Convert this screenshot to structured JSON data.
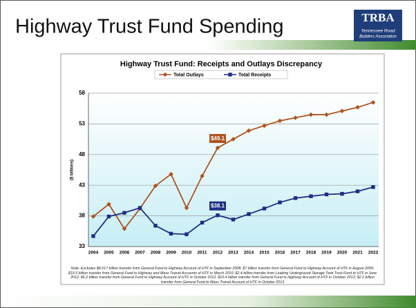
{
  "slide_title": "Highway Trust Fund Spending",
  "logo": {
    "text": "TRBA",
    "subtitle": [
      "Tennessee Road",
      "Builders Association"
    ]
  },
  "chart_data": {
    "type": "line",
    "title": "Highway Trust Fund: Receipts and Outlays Discrepancy",
    "ylabel": "($ billions)",
    "categories": [
      "2004",
      "2005",
      "2006",
      "2007",
      "2008",
      "2009",
      "2010",
      "2011",
      "2012",
      "2013",
      "2014",
      "2015",
      "2016",
      "2017",
      "2018",
      "2019",
      "2020",
      "2021",
      "2022"
    ],
    "series": [
      {
        "name": "Total Outlays",
        "color": "#b0531e",
        "marker": "diamond",
        "values": [
          37.9,
          39.9,
          35.9,
          39.2,
          42.9,
          44.8,
          39.3,
          44.5,
          49.1,
          50.5,
          51.9,
          52.7,
          53.5,
          54.0,
          54.5,
          54.5,
          55.1,
          55.7,
          56.5
        ],
        "value_labels": [
          null,
          null,
          null,
          null,
          null,
          null,
          null,
          null,
          "$49.1",
          null,
          null,
          null,
          null,
          null,
          null,
          null,
          null,
          null,
          null
        ]
      },
      {
        "name": "Total Receipts",
        "color": "#1f2d86",
        "marker": "square",
        "values": [
          34.7,
          37.9,
          38.5,
          39.3,
          36.4,
          35.1,
          35.0,
          36.9,
          38.1,
          37.4,
          38.3,
          39.2,
          40.2,
          40.9,
          41.2,
          41.5,
          41.6,
          42.0,
          42.7
        ],
        "value_labels": [
          null,
          null,
          null,
          null,
          null,
          null,
          null,
          null,
          "$38.1",
          null,
          null,
          null,
          null,
          null,
          null,
          null,
          null,
          null,
          null
        ]
      }
    ],
    "ylim": [
      33,
      58
    ],
    "yticks": [
      33,
      38,
      43,
      48,
      53,
      58
    ],
    "grid": true,
    "legend": "top",
    "note": "Note: Excludes $8.017 billion transfer from General Fund to Highway Account of HTF in September 2008; $7 billion transfer from General Fund to Highway Account of HTF in August 2009; $19.5 billion transfer from General Fund to Highway and Mass Transit Accounts of HTF in March 2010; $2.4 billion transfer from Leaking Underground Storage Tank Trust Fund to HTF in June 2012; $6.2 billion transfer from General Fund to Highway Account of HTF in October 2012; $10.4 billion transfer from General Fund to Highway Account of HTF in October 2013; $2.2 billion transfer from General Fund to Mass Transit Account of HTF in October 2013"
  }
}
